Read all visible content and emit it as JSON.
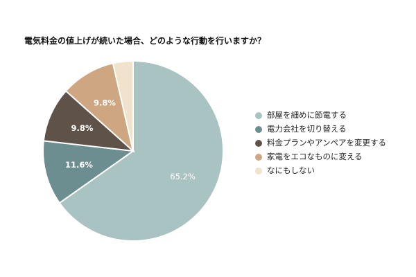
{
  "chart_data": {
    "type": "pie",
    "title": "電気料金の値上げが続いた場合、どのような行動を行いますか？",
    "categories": [
      "部屋を細めに節電する",
      "電力会社を切り替える",
      "料金プランやアンペアを変更する",
      "家電をエコなものに変える",
      "なにもしない"
    ],
    "values": [
      65.2,
      11.6,
      9.8,
      9.8,
      3.6
    ],
    "data_labels": [
      "65.2%",
      "11.6%",
      "9.8%",
      "9.8%",
      ""
    ],
    "colors": [
      "#a9c2c2",
      "#6d8e91",
      "#5f5249",
      "#cfa682",
      "#f0e2cb"
    ],
    "label_colors": [
      "#ffffff",
      "#ffffff",
      "#ffffff",
      "#ffffff",
      "#ffffff"
    ],
    "legend_position": "right",
    "start_angle_deg": 0,
    "direction": "clockwise"
  }
}
